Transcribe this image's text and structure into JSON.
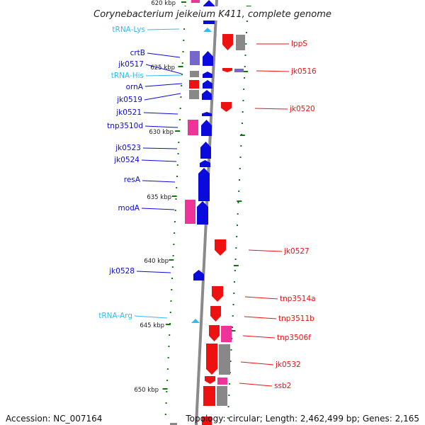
{
  "title": "Corynebacterium jeikeium K411, complete genome",
  "accession": "Accession: NC_007164",
  "topology": "Topology: circular; Length: 2,462,499 bp; Genes: 2,165",
  "colors": {
    "forward_gene": "#0a0adc",
    "reverse_gene": "#ee1111",
    "trna": "#33bbee",
    "cog_purple": "#7766cc",
    "cog_magenta": "#ee3399",
    "cog_gray": "#888888",
    "kbp_tick": "#117711"
  },
  "kbp_markers": [
    {
      "label": "620 kbp"
    },
    {
      "label": "625 kbp"
    },
    {
      "label": "630 kbp"
    },
    {
      "label": "635 kbp"
    },
    {
      "label": "640 kbp"
    },
    {
      "label": "645 kbp"
    },
    {
      "label": "650 kbp"
    }
  ],
  "left_labels": [
    {
      "text": "tRNA-Lys",
      "kind": "trna"
    },
    {
      "text": "crtB",
      "kind": "gene"
    },
    {
      "text": "jk0517",
      "kind": "gene"
    },
    {
      "text": "tRNA-His",
      "kind": "trna"
    },
    {
      "text": "ornA",
      "kind": "gene"
    },
    {
      "text": "jk0519",
      "kind": "gene"
    },
    {
      "text": "jk0521",
      "kind": "gene"
    },
    {
      "text": "tnp3510d",
      "kind": "gene"
    },
    {
      "text": "jk0523",
      "kind": "gene"
    },
    {
      "text": "jk0524",
      "kind": "gene"
    },
    {
      "text": "resA",
      "kind": "gene"
    },
    {
      "text": "modA",
      "kind": "gene"
    },
    {
      "text": "jk0528",
      "kind": "gene"
    },
    {
      "text": "tRNA-Arg",
      "kind": "trna"
    }
  ],
  "right_labels": [
    {
      "text": "lppS"
    },
    {
      "text": "jk0516"
    },
    {
      "text": "jk0520"
    },
    {
      "text": "jk0527"
    },
    {
      "text": "tnp3514a"
    },
    {
      "text": "tnp3511b"
    },
    {
      "text": "tnp3506f"
    },
    {
      "text": "jk0532"
    },
    {
      "text": "ssb2"
    }
  ]
}
